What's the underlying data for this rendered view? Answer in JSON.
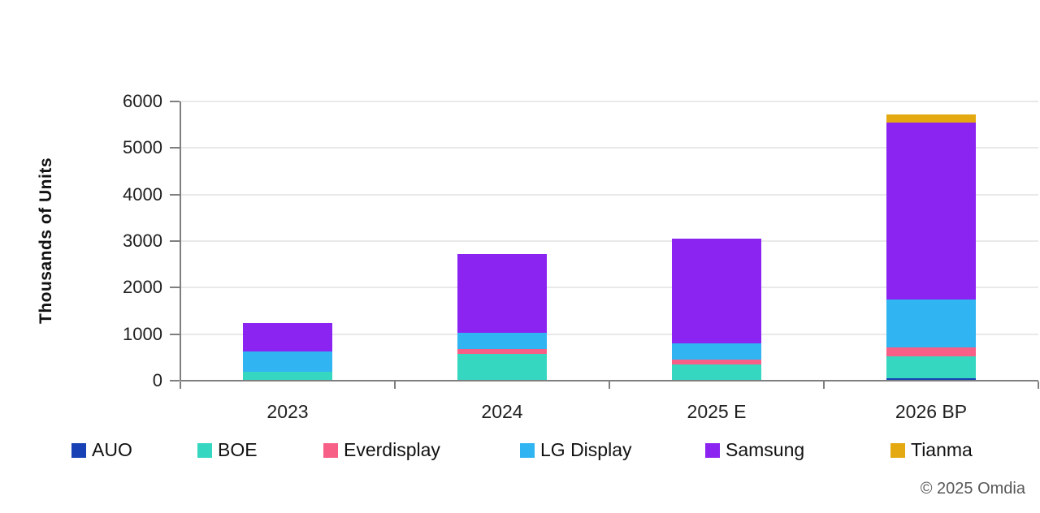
{
  "chart_data": {
    "type": "bar",
    "stacked": true,
    "title": "",
    "xlabel": "",
    "ylabel": "Thousands of Units",
    "ylim": [
      0,
      6000
    ],
    "yticks": [
      0,
      1000,
      2000,
      3000,
      4000,
      5000,
      6000
    ],
    "grid": true,
    "legend_position": "bottom",
    "categories": [
      "2023",
      "2024",
      "2025 E",
      "2026 BP"
    ],
    "series": [
      {
        "name": "AUO",
        "color": "#1741b5",
        "values": [
          0,
          0,
          0,
          45
        ]
      },
      {
        "name": "BOE",
        "color": "#36d7c1",
        "values": [
          200,
          580,
          350,
          480
        ]
      },
      {
        "name": "Everdisplay",
        "color": "#f75f87",
        "values": [
          0,
          100,
          105,
          190
        ]
      },
      {
        "name": "LG Display",
        "color": "#30b4f2",
        "values": [
          430,
          350,
          350,
          1030
        ]
      },
      {
        "name": "Samsung",
        "color": "#8b24f0",
        "values": [
          610,
          1700,
          2250,
          3810
        ]
      },
      {
        "name": "Tianma",
        "color": "#e4a911",
        "values": [
          0,
          0,
          0,
          160
        ]
      }
    ],
    "totals": [
      1240,
      2730,
      3055,
      5715
    ]
  },
  "legend_x_positions": [
    88,
    243,
    398,
    640,
    868,
    1096
  ],
  "footer": {
    "copyright": "© 2025 Omdia"
  }
}
